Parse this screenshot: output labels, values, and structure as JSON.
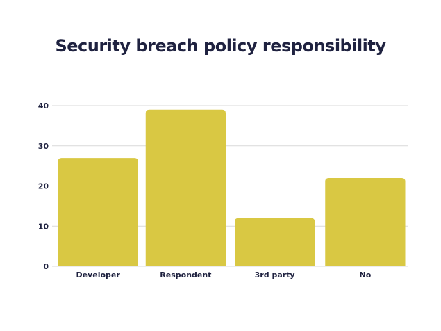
{
  "chart_data": {
    "type": "bar",
    "title": "Security breach policy responsibility",
    "categories": [
      "Developer",
      "Respondent",
      "3rd party",
      "No"
    ],
    "values": [
      27,
      39,
      12,
      22
    ],
    "yticks": [
      "0",
      "10",
      "20",
      "30",
      "40"
    ],
    "ylim": [
      0,
      40
    ],
    "xlabel": "",
    "ylabel": "",
    "grid": true,
    "bar_color": "#d9c843",
    "grid_color": "#d9d9d9",
    "text_color": "#1f2240"
  }
}
